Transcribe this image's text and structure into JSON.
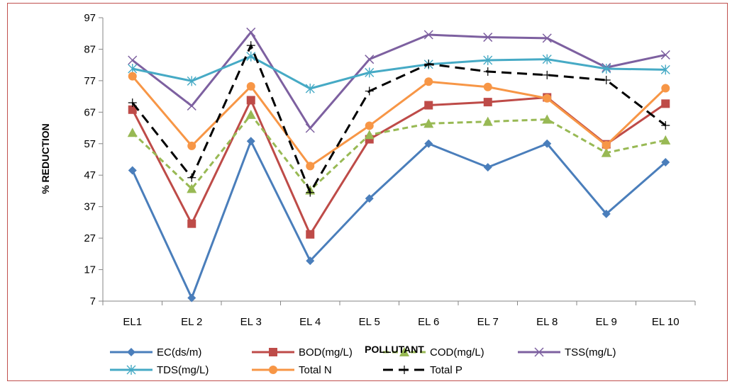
{
  "chart_data": {
    "type": "line",
    "xlabel": "POLLUTANT",
    "ylabel": "% REDUCTION",
    "ylim": [
      7,
      97
    ],
    "yticks": [
      7,
      17,
      27,
      37,
      47,
      57,
      67,
      77,
      87,
      97
    ],
    "grid": false,
    "legend_position": "bottom",
    "categories": [
      "EL1",
      "EL 2",
      "EL 3",
      "EL 4",
      "EL 5",
      "EL 6",
      "EL 7",
      "EL 8",
      "EL 9",
      "EL 10"
    ],
    "series": [
      {
        "name": "EC(ds/m)",
        "color": "#4a7ebb",
        "marker": "diamond",
        "dash": "solid",
        "values": [
          48.5,
          8,
          57.8,
          19.8,
          39.6,
          57,
          49.5,
          57,
          34.7,
          51.1
        ]
      },
      {
        "name": "BOD(mg/L)",
        "color": "#be4b48",
        "marker": "square",
        "dash": "solid",
        "values": [
          67.8,
          31.6,
          70.8,
          28.2,
          58.4,
          69.2,
          70.2,
          71.7,
          56.8,
          69.7
        ]
      },
      {
        "name": "COD(mg/L)",
        "color": "#98b954",
        "marker": "triangle",
        "dash": "dashed",
        "values": [
          60.5,
          42.7,
          66.2,
          42.2,
          59.8,
          63.4,
          64,
          64.7,
          54.1,
          58.1
        ]
      },
      {
        "name": "TSS(mg/L)",
        "color": "#7d60a0",
        "marker": "x",
        "dash": "solid",
        "values": [
          83.5,
          69,
          92.4,
          61.9,
          83.8,
          91.6,
          90.8,
          90.5,
          81.2,
          85.2
        ]
      },
      {
        "name": "TDS(mg/L)",
        "color": "#46aac5",
        "marker": "star",
        "dash": "solid",
        "values": [
          80.8,
          76.9,
          84.7,
          74.5,
          79.6,
          82.2,
          83.5,
          83.8,
          80.8,
          80.5
        ]
      },
      {
        "name": "Total N",
        "color": "#f79646",
        "marker": "circle",
        "dash": "solid",
        "values": [
          78.4,
          56.3,
          75.2,
          49.9,
          62.7,
          76.7,
          75,
          71.4,
          56.5,
          74.6
        ]
      },
      {
        "name": "Total P",
        "color": "#000000",
        "marker": "plus",
        "dash": "dashed",
        "values": [
          70,
          46.2,
          88.2,
          41.5,
          73.7,
          82.3,
          79.9,
          78.8,
          77.2,
          62.8
        ]
      }
    ]
  }
}
